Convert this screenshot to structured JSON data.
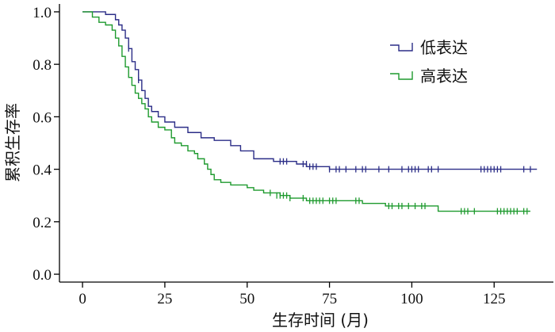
{
  "chart_data": {
    "type": "line",
    "title": "",
    "xlabel": "生存时间 (月)",
    "ylabel": "累积生存率",
    "xlim": [
      -7,
      143
    ],
    "ylim": [
      -0.03,
      1.03
    ],
    "xticks": [
      "0",
      "25",
      "50",
      "75",
      "100",
      "125"
    ],
    "yticks": [
      "0.0",
      "0.2",
      "0.4",
      "0.6",
      "0.8",
      "1.0"
    ],
    "legend_position": "top-right",
    "grid": false,
    "series": [
      {
        "name": "低表达",
        "color": "#2b2d87",
        "step_points": [
          [
            0,
            1.0
          ],
          [
            7,
            0.99
          ],
          [
            10,
            0.97
          ],
          [
            11,
            0.95
          ],
          [
            12,
            0.93
          ],
          [
            13,
            0.9
          ],
          [
            14,
            0.86
          ],
          [
            15,
            0.81
          ],
          [
            16,
            0.78
          ],
          [
            17,
            0.74
          ],
          [
            18,
            0.7
          ],
          [
            19,
            0.67
          ],
          [
            20,
            0.64
          ],
          [
            21,
            0.62
          ],
          [
            23,
            0.6
          ],
          [
            25,
            0.58
          ],
          [
            28,
            0.56
          ],
          [
            32,
            0.54
          ],
          [
            36,
            0.52
          ],
          [
            40,
            0.51
          ],
          [
            45,
            0.49
          ],
          [
            48,
            0.47
          ],
          [
            52,
            0.44
          ],
          [
            58,
            0.43
          ],
          [
            65,
            0.42
          ],
          [
            68,
            0.41
          ],
          [
            75,
            0.4
          ],
          [
            138,
            0.4
          ]
        ],
        "censor_points": [
          [
            14,
            0.86
          ],
          [
            17,
            0.74
          ],
          [
            60,
            0.43
          ],
          [
            61,
            0.43
          ],
          [
            62,
            0.43
          ],
          [
            67,
            0.42
          ],
          [
            68,
            0.42
          ],
          [
            69,
            0.41
          ],
          [
            70,
            0.41
          ],
          [
            71,
            0.41
          ],
          [
            75,
            0.4
          ],
          [
            77,
            0.4
          ],
          [
            78,
            0.4
          ],
          [
            80,
            0.4
          ],
          [
            83,
            0.4
          ],
          [
            85,
            0.4
          ],
          [
            86,
            0.4
          ],
          [
            90,
            0.4
          ],
          [
            93,
            0.4
          ],
          [
            97,
            0.4
          ],
          [
            99,
            0.4
          ],
          [
            100,
            0.4
          ],
          [
            101,
            0.4
          ],
          [
            102,
            0.4
          ],
          [
            105,
            0.4
          ],
          [
            106,
            0.4
          ],
          [
            108,
            0.4
          ],
          [
            121,
            0.4
          ],
          [
            122,
            0.4
          ],
          [
            123,
            0.4
          ],
          [
            124,
            0.4
          ],
          [
            125,
            0.4
          ],
          [
            126,
            0.4
          ],
          [
            127,
            0.4
          ],
          [
            134,
            0.4
          ],
          [
            136,
            0.4
          ]
        ]
      },
      {
        "name": "高表达",
        "color": "#1e9a2e",
        "step_points": [
          [
            0,
            1.0
          ],
          [
            3,
            0.98
          ],
          [
            5,
            0.96
          ],
          [
            7,
            0.95
          ],
          [
            9,
            0.93
          ],
          [
            10,
            0.9
          ],
          [
            11,
            0.87
          ],
          [
            12,
            0.83
          ],
          [
            13,
            0.79
          ],
          [
            14,
            0.75
          ],
          [
            15,
            0.72
          ],
          [
            16,
            0.69
          ],
          [
            17,
            0.67
          ],
          [
            18,
            0.65
          ],
          [
            19,
            0.63
          ],
          [
            20,
            0.6
          ],
          [
            21,
            0.58
          ],
          [
            23,
            0.56
          ],
          [
            25,
            0.55
          ],
          [
            27,
            0.52
          ],
          [
            28,
            0.5
          ],
          [
            30,
            0.49
          ],
          [
            32,
            0.47
          ],
          [
            34,
            0.46
          ],
          [
            35,
            0.44
          ],
          [
            37,
            0.42
          ],
          [
            38,
            0.4
          ],
          [
            39,
            0.38
          ],
          [
            40,
            0.36
          ],
          [
            42,
            0.35
          ],
          [
            45,
            0.34
          ],
          [
            50,
            0.33
          ],
          [
            52,
            0.32
          ],
          [
            55,
            0.31
          ],
          [
            60,
            0.3
          ],
          [
            63,
            0.29
          ],
          [
            68,
            0.28
          ],
          [
            85,
            0.27
          ],
          [
            92,
            0.26
          ],
          [
            108,
            0.24
          ],
          [
            136,
            0.24
          ]
        ],
        "censor_points": [
          [
            57,
            0.31
          ],
          [
            59,
            0.3
          ],
          [
            60,
            0.3
          ],
          [
            61,
            0.3
          ],
          [
            62,
            0.3
          ],
          [
            63,
            0.29
          ],
          [
            67,
            0.29
          ],
          [
            69,
            0.28
          ],
          [
            70,
            0.28
          ],
          [
            71,
            0.28
          ],
          [
            72,
            0.28
          ],
          [
            73,
            0.28
          ],
          [
            75,
            0.28
          ],
          [
            76,
            0.28
          ],
          [
            77,
            0.28
          ],
          [
            83,
            0.28
          ],
          [
            84,
            0.28
          ],
          [
            93,
            0.26
          ],
          [
            94,
            0.26
          ],
          [
            96,
            0.26
          ],
          [
            97,
            0.26
          ],
          [
            99,
            0.26
          ],
          [
            101,
            0.26
          ],
          [
            103,
            0.26
          ],
          [
            104,
            0.26
          ],
          [
            115,
            0.24
          ],
          [
            116,
            0.24
          ],
          [
            117,
            0.24
          ],
          [
            119,
            0.24
          ],
          [
            126,
            0.24
          ],
          [
            127,
            0.24
          ],
          [
            128,
            0.24
          ],
          [
            129,
            0.24
          ],
          [
            130,
            0.24
          ],
          [
            131,
            0.24
          ],
          [
            132,
            0.24
          ],
          [
            134,
            0.24
          ],
          [
            135,
            0.24
          ]
        ]
      }
    ]
  }
}
